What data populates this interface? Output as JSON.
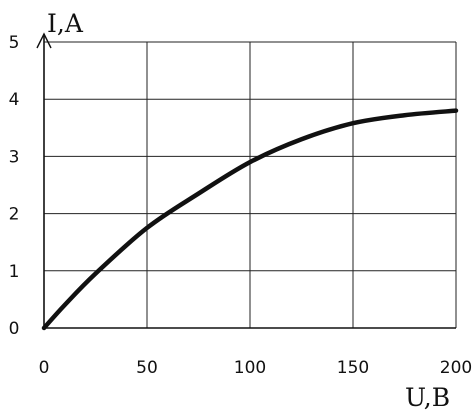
{
  "chart_data": {
    "type": "line",
    "xlabel": "U,B",
    "ylabel": "I,A",
    "xlim": [
      0,
      200
    ],
    "ylim": [
      0,
      5
    ],
    "x_ticks": [
      "0",
      "50",
      "100",
      "150",
      "200"
    ],
    "y_ticks": [
      "0",
      "1",
      "2",
      "3",
      "4",
      "5"
    ],
    "grid": true,
    "series": [
      {
        "x": [
          0,
          10,
          25,
          50,
          75,
          100,
          125,
          150,
          175,
          200
        ],
        "y": [
          0,
          0.4,
          0.95,
          1.75,
          2.35,
          2.9,
          3.3,
          3.58,
          3.72,
          3.8
        ]
      }
    ]
  }
}
